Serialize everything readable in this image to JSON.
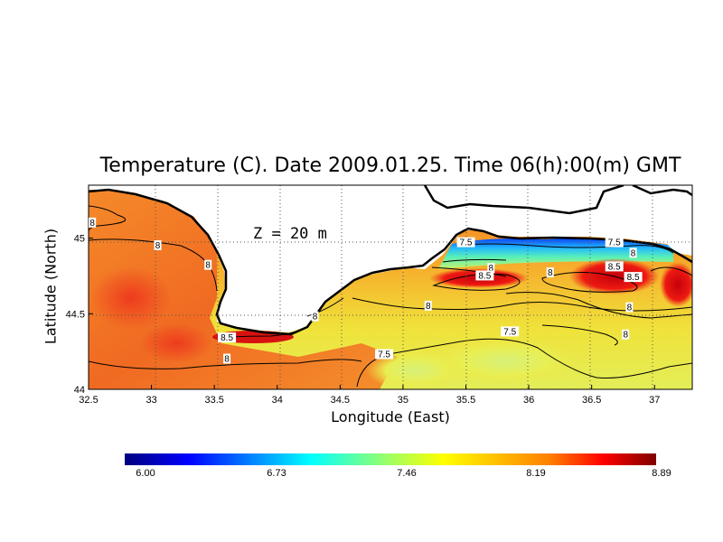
{
  "title": "Temperature (C). Date 2009.01.25. Time 06(h):00(m) GMT",
  "depth_label": "Z = 20 m",
  "xlabel": "Longitude (East)",
  "ylabel": "Latitude (North)",
  "chart_data": {
    "type": "heatmap",
    "variable": "Temperature",
    "unit": "C",
    "date": "2009.01.25",
    "time": "06(h):00(m) GMT",
    "depth": "Z = 20 m",
    "xlim": [
      32.5,
      37.3
    ],
    "ylim": [
      44.0,
      45.35
    ],
    "x_ticks": [
      32.5,
      33,
      33.5,
      34,
      34.5,
      35,
      35.5,
      36,
      36.5,
      37
    ],
    "x_tick_labels": [
      "32.5",
      "33",
      "33.5",
      "34",
      "34.5",
      "35",
      "35.5",
      "36",
      "36.5",
      "37"
    ],
    "y_ticks": [
      44,
      44.5,
      45
    ],
    "y_tick_labels": [
      "44",
      "44.5",
      "45"
    ],
    "grid": true,
    "colorbar": {
      "min": 6.0,
      "max": 8.89,
      "tick_values": [
        6.0,
        6.73,
        7.46,
        8.19,
        8.89
      ],
      "tick_labels": [
        "6.00",
        "6.73",
        "7.46",
        "8.19",
        "8.89"
      ],
      "orientation": "horizontal",
      "placement": "bottom"
    },
    "contour_labels": [
      {
        "text": "8",
        "lon": 32.53,
        "lat": 45.1
      },
      {
        "text": "8",
        "lon": 33.05,
        "lat": 44.95
      },
      {
        "text": "8",
        "lon": 33.45,
        "lat": 44.82
      },
      {
        "text": "8.5",
        "lon": 33.6,
        "lat": 44.34
      },
      {
        "text": "8",
        "lon": 33.6,
        "lat": 44.2
      },
      {
        "text": "8",
        "lon": 34.3,
        "lat": 44.48
      },
      {
        "text": "7.5",
        "lon": 34.85,
        "lat": 44.23
      },
      {
        "text": "8",
        "lon": 35.2,
        "lat": 44.55
      },
      {
        "text": "7.5",
        "lon": 35.5,
        "lat": 44.97
      },
      {
        "text": "8",
        "lon": 35.7,
        "lat": 44.8
      },
      {
        "text": "8.5",
        "lon": 35.65,
        "lat": 44.75
      },
      {
        "text": "7.5",
        "lon": 35.85,
        "lat": 44.38
      },
      {
        "text": "8",
        "lon": 36.17,
        "lat": 44.77
      },
      {
        "text": "7.5",
        "lon": 36.68,
        "lat": 44.97
      },
      {
        "text": "8",
        "lon": 36.83,
        "lat": 44.9
      },
      {
        "text": "8.5",
        "lon": 36.68,
        "lat": 44.81
      },
      {
        "text": "8.5",
        "lon": 36.83,
        "lat": 44.74
      },
      {
        "text": "8",
        "lon": 36.8,
        "lat": 44.54
      },
      {
        "text": "8",
        "lon": 36.77,
        "lat": 44.36
      }
    ]
  }
}
